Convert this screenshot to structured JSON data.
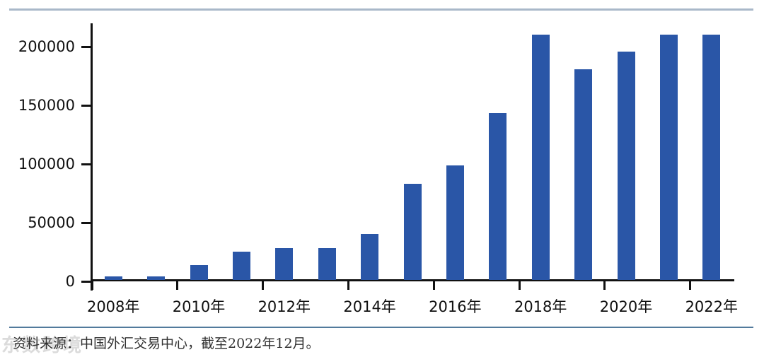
{
  "colors": {
    "bar": "#2a56a7",
    "axis": "#111111",
    "top_divider": "#a9b8c9",
    "bottom_divider": "#527a9c"
  },
  "chart_data": {
    "type": "bar",
    "title": "",
    "xlabel": "",
    "ylabel": "",
    "years": [
      2008,
      2009,
      2010,
      2011,
      2012,
      2013,
      2014,
      2015,
      2016,
      2017,
      2018,
      2019,
      2020,
      2021,
      2022
    ],
    "categories": [
      "2008年",
      "2009年",
      "2010年",
      "2011年",
      "2012年",
      "2013年",
      "2014年",
      "2015年",
      "2016年",
      "2017年",
      "2018年",
      "2019年",
      "2020年",
      "2021年",
      "2022年"
    ],
    "values": [
      4500,
      4500,
      14000,
      25500,
      28500,
      28500,
      40500,
      83000,
      98500,
      143500,
      210500,
      181000,
      195500,
      210500,
      210500
    ],
    "ylim": [
      0,
      220000
    ],
    "yticks": [
      0,
      50000,
      100000,
      150000,
      200000
    ],
    "ytick_labels": [
      "0",
      "50000",
      "100000",
      "150000",
      "200000"
    ],
    "xtick_label_years": [
      2008,
      2010,
      2012,
      2014,
      2016,
      2018,
      2020,
      2022
    ],
    "xtick_labels": [
      "2008年",
      "2010年",
      "2012年",
      "2014年",
      "2016年",
      "2018年",
      "2020年",
      "2022年"
    ],
    "grid": false,
    "legend": "none"
  },
  "footer": {
    "source_note": "资料来源：中国外汇交易中心，截至2022年12月。"
  },
  "watermark": {
    "text": "东数跨境"
  }
}
